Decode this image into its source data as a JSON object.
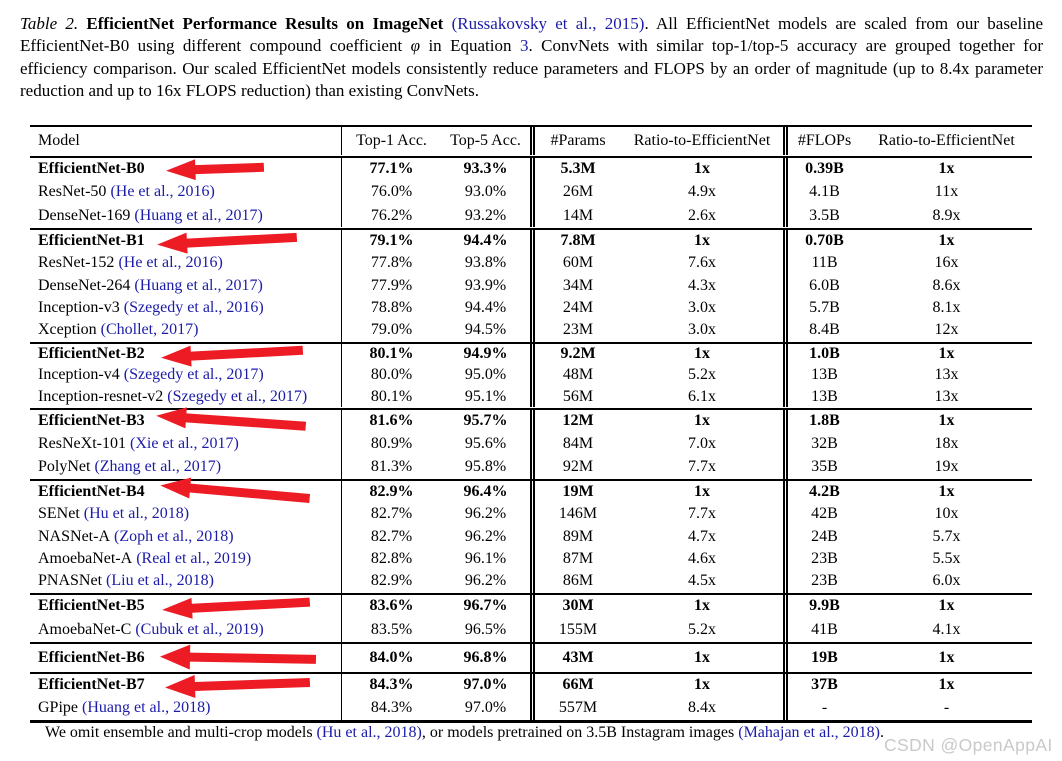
{
  "caption": {
    "label": "Table 2.",
    "title": " EfficientNet Performance Results on ImageNet ",
    "cite": "(Russakovsky et al., 2015)",
    "body_1": ".  All EfficientNet models are scaled from our baseline EfficientNet-B0 using different compound coefficient ",
    "phi": "φ",
    "body_2": " in Equation ",
    "eq_ref": "3",
    "body_3": ". ConvNets with similar top-1/top-5 accuracy are grouped together for efficiency comparison. Our scaled EfficientNet models consistently reduce parameters and FLOPS by an order of magnitude (up to 8.4x parameter reduction and up to 16x FLOPS reduction) than existing ConvNets."
  },
  "table": {
    "headers": [
      "Model",
      "Top-1 Acc.",
      "Top-5 Acc.",
      "#Params",
      "Ratio-to-EfficientNet",
      "#FLOPs",
      "Ratio-to-EfficientNet"
    ],
    "groups": [
      {
        "rows": [
          {
            "model": "EfficientNet-B0",
            "cite": "",
            "bold": true,
            "arrow": true,
            "values": [
              "77.1%",
              "93.3%",
              "5.3M",
              "1x",
              "0.39B",
              "1x"
            ]
          },
          {
            "model": "ResNet-50",
            "cite": "(He et al., 2016)",
            "values": [
              "76.0%",
              "93.0%",
              "26M",
              "4.9x",
              "4.1B",
              "11x"
            ]
          },
          {
            "model": "DenseNet-169",
            "cite": "(Huang et al., 2017)",
            "values": [
              "76.2%",
              "93.2%",
              "14M",
              "2.6x",
              "3.5B",
              "8.9x"
            ]
          }
        ]
      },
      {
        "rows": [
          {
            "model": "EfficientNet-B1",
            "cite": "",
            "bold": true,
            "arrow": true,
            "values": [
              "79.1%",
              "94.4%",
              "7.8M",
              "1x",
              "0.70B",
              "1x"
            ]
          },
          {
            "model": "ResNet-152",
            "cite": "(He et al., 2016)",
            "values": [
              "77.8%",
              "93.8%",
              "60M",
              "7.6x",
              "11B",
              "16x"
            ]
          },
          {
            "model": "DenseNet-264",
            "cite": "(Huang et al., 2017)",
            "values": [
              "77.9%",
              "93.9%",
              "34M",
              "4.3x",
              "6.0B",
              "8.6x"
            ]
          },
          {
            "model": "Inception-v3",
            "cite": "(Szegedy et al., 2016)",
            "values": [
              "78.8%",
              "94.4%",
              "24M",
              "3.0x",
              "5.7B",
              "8.1x"
            ]
          },
          {
            "model": "Xception",
            "cite": "(Chollet, 2017)",
            "values": [
              "79.0%",
              "94.5%",
              "23M",
              "3.0x",
              "8.4B",
              "12x"
            ]
          }
        ]
      },
      {
        "rows": [
          {
            "model": "EfficientNet-B2",
            "cite": "",
            "bold": true,
            "arrow": true,
            "values": [
              "80.1%",
              "94.9%",
              "9.2M",
              "1x",
              "1.0B",
              "1x"
            ]
          },
          {
            "model": "Inception-v4",
            "cite": "(Szegedy et al., 2017)",
            "values": [
              "80.0%",
              "95.0%",
              "48M",
              "5.2x",
              "13B",
              "13x"
            ]
          },
          {
            "model": "Inception-resnet-v2",
            "cite": "(Szegedy et al., 2017)",
            "values": [
              "80.1%",
              "95.1%",
              "56M",
              "6.1x",
              "13B",
              "13x"
            ]
          }
        ]
      },
      {
        "rows": [
          {
            "model": "EfficientNet-B3",
            "cite": "",
            "bold": true,
            "arrow": true,
            "values": [
              "81.6%",
              "95.7%",
              "12M",
              "1x",
              "1.8B",
              "1x"
            ]
          },
          {
            "model": "ResNeXt-101",
            "cite": "(Xie et al., 2017)",
            "values": [
              "80.9%",
              "95.6%",
              "84M",
              "7.0x",
              "32B",
              "18x"
            ]
          },
          {
            "model": "PolyNet",
            "cite": "(Zhang et al., 2017)",
            "values": [
              "81.3%",
              "95.8%",
              "92M",
              "7.7x",
              "35B",
              "19x"
            ]
          }
        ]
      },
      {
        "rows": [
          {
            "model": "EfficientNet-B4",
            "cite": "",
            "bold": true,
            "arrow": true,
            "values": [
              "82.9%",
              "96.4%",
              "19M",
              "1x",
              "4.2B",
              "1x"
            ]
          },
          {
            "model": "SENet",
            "cite": "(Hu et al., 2018)",
            "values": [
              "82.7%",
              "96.2%",
              "146M",
              "7.7x",
              "42B",
              "10x"
            ]
          },
          {
            "model": "NASNet-A",
            "cite": "(Zoph et al., 2018)",
            "values": [
              "82.7%",
              "96.2%",
              "89M",
              "4.7x",
              "24B",
              "5.7x"
            ]
          },
          {
            "model": "AmoebaNet-A",
            "cite": "(Real et al., 2019)",
            "values": [
              "82.8%",
              "96.1%",
              "87M",
              "4.6x",
              "23B",
              "5.5x"
            ]
          },
          {
            "model": "PNASNet",
            "cite": "(Liu et al., 2018)",
            "values": [
              "82.9%",
              "96.2%",
              "86M",
              "4.5x",
              "23B",
              "6.0x"
            ]
          }
        ]
      },
      {
        "rows": [
          {
            "model": "EfficientNet-B5",
            "cite": "",
            "bold": true,
            "arrow": true,
            "values": [
              "83.6%",
              "96.7%",
              "30M",
              "1x",
              "9.9B",
              "1x"
            ]
          },
          {
            "model": "AmoebaNet-C",
            "cite": "(Cubuk et al., 2019)",
            "values": [
              "83.5%",
              "96.5%",
              "155M",
              "5.2x",
              "41B",
              "4.1x"
            ]
          }
        ]
      },
      {
        "rows": [
          {
            "model": "EfficientNet-B6",
            "cite": "",
            "bold": true,
            "arrow": true,
            "values": [
              "84.0%",
              "96.8%",
              "43M",
              "1x",
              "19B",
              "1x"
            ]
          }
        ]
      },
      {
        "rows": [
          {
            "model": "EfficientNet-B7",
            "cite": "",
            "bold": true,
            "arrow": true,
            "values": [
              "84.3%",
              "97.0%",
              "66M",
              "1x",
              "37B",
              "1x"
            ]
          },
          {
            "model": "GPipe",
            "cite": "(Huang et al., 2018)",
            "values": [
              "84.3%",
              "97.0%",
              "557M",
              "8.4x",
              "-",
              "-"
            ]
          }
        ]
      }
    ]
  },
  "footnote": {
    "text_1": "We omit ensemble and multi-crop models ",
    "cite_1": "(Hu et al., 2018)",
    "text_2": ", or models pretrained on 3.5B Instagram images ",
    "cite_2": "(Mahajan et al., 2018)",
    "text_3": "."
  },
  "watermark": "CSDN @OpenAppAI",
  "colors": {
    "citation_blue": "#1c1ca8",
    "arrow_red": "#ed1c24",
    "watermark_gray": "#c9c9c9",
    "text_black": "#000000"
  }
}
